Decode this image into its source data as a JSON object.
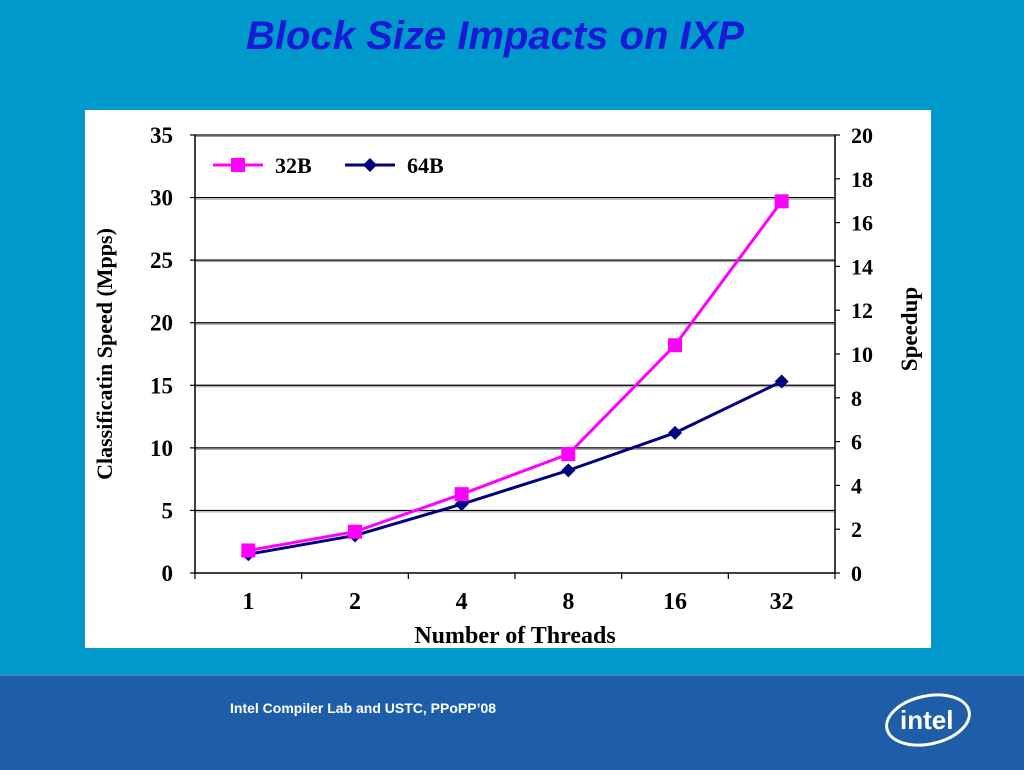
{
  "slide": {
    "title": "Block Size Impacts on IXP",
    "footer": "Intel Compiler Lab and USTC, PPoPP’08",
    "logo_text": "intel"
  },
  "colors": {
    "background": "#0099cc",
    "title": "#1a1ad6",
    "footer_band": "#1e5ea8",
    "series_32B": "#ff00ff",
    "series_64B": "#000080"
  },
  "chart_data": {
    "type": "line",
    "categories": [
      "1",
      "2",
      "4",
      "8",
      "16",
      "32"
    ],
    "xlabel": "Number of Threads",
    "ylabel": "Classificatin Speed (Mpps)",
    "y2label": "Speedup",
    "ylim": [
      0,
      35
    ],
    "y2lim": [
      0,
      20
    ],
    "yticks": [
      0,
      5,
      10,
      15,
      20,
      25,
      30,
      35
    ],
    "y2ticks": [
      0,
      2,
      4,
      6,
      8,
      10,
      12,
      14,
      16,
      18,
      20
    ],
    "grid": true,
    "legend_position": "top-left",
    "series": [
      {
        "name": "32B",
        "marker": "square",
        "color": "#ff00ff",
        "values": [
          1.8,
          3.3,
          6.3,
          9.5,
          18.2,
          29.7
        ]
      },
      {
        "name": "64B",
        "marker": "diamond",
        "color": "#000080",
        "values": [
          1.5,
          3.0,
          5.5,
          8.2,
          11.2,
          15.3
        ]
      }
    ]
  }
}
